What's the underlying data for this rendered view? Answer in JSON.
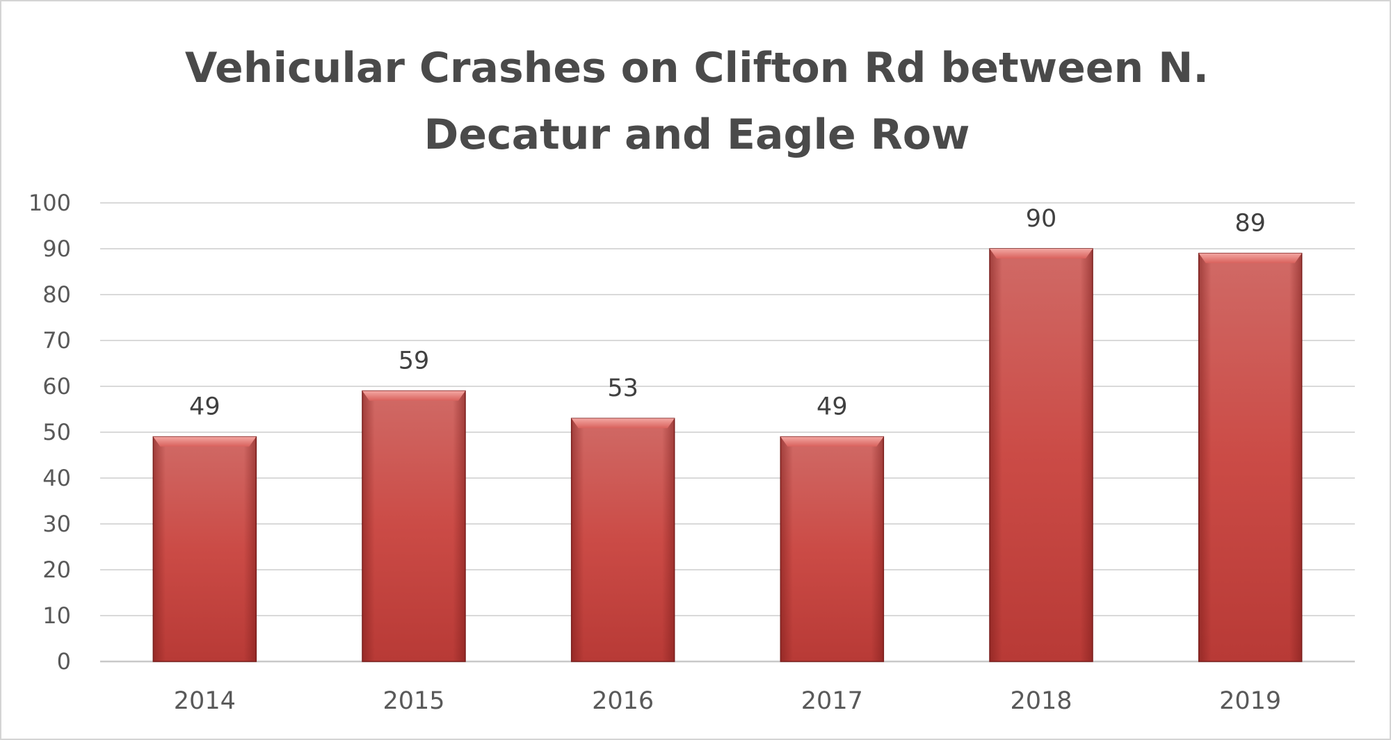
{
  "chart_data": {
    "type": "bar",
    "title": "Vehicular Crashes on Clifton Rd between N.\nDecatur and Eagle Row",
    "xlabel": "",
    "ylabel": "",
    "categories": [
      "2014",
      "2015",
      "2016",
      "2017",
      "2018",
      "2019"
    ],
    "values": [
      49,
      59,
      53,
      49,
      90,
      89
    ],
    "data_labels": [
      "49",
      "59",
      "53",
      "49",
      "90",
      "89"
    ],
    "ylim": [
      0,
      100
    ],
    "y_ticks": [
      0,
      10,
      20,
      30,
      40,
      50,
      60,
      70,
      80,
      90,
      100
    ],
    "grid": true,
    "legend": "none",
    "bar_color": "#c9433f",
    "bar_highlight": "#e88a86",
    "bar_shadow": "#7a1d1b"
  }
}
